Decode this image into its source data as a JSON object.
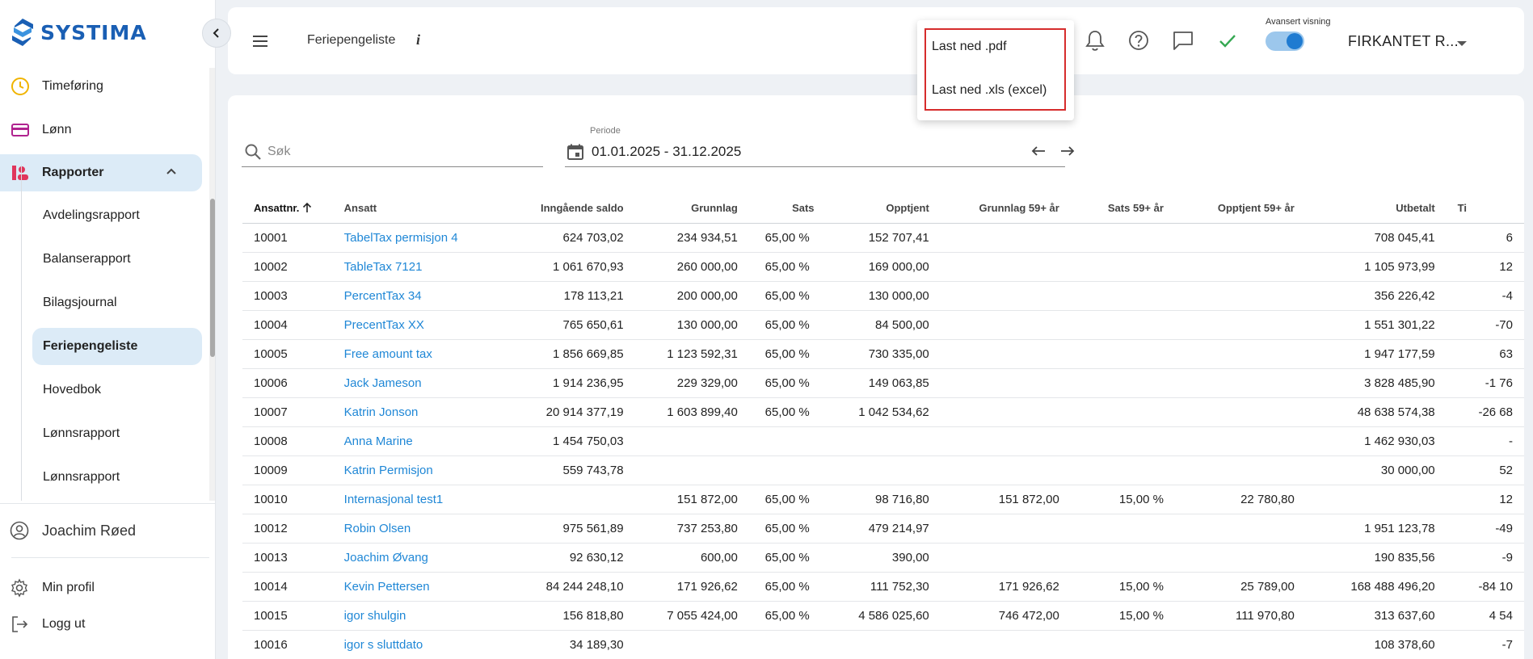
{
  "brand": {
    "name": "SYSTIMA",
    "color": "#1a5fb4"
  },
  "sidebar": {
    "items": [
      {
        "label": "Timeføring",
        "icon": "clock-icon"
      },
      {
        "label": "Lønn",
        "icon": "card-icon"
      },
      {
        "label": "Rapporter",
        "icon": "report-icon",
        "expanded": true
      }
    ],
    "sub_items": [
      "Avdelingsrapport",
      "Balanserapport",
      "Bilagsjournal",
      "Feriepengeliste",
      "Hovedbok",
      "Lønnsrapport",
      "Lønnsrapport"
    ],
    "active_sub": "Feriepengeliste",
    "user": "Joachim Røed",
    "footer": {
      "profile": "Min profil",
      "logout": "Logg ut"
    }
  },
  "header": {
    "title": "Feriepengeliste",
    "info": "i",
    "advanced_view_label": "Avansert visning",
    "advanced_view_on": true,
    "company": "FIRKANTET R..."
  },
  "export_menu": {
    "pdf": "Last ned .pdf",
    "xls": "Last ned .xls (excel)"
  },
  "filters": {
    "search_placeholder": "Søk",
    "period_label": "Periode",
    "period_value": "01.01.2025 - 31.12.2025"
  },
  "table": {
    "columns": [
      "Ansattnr.",
      "Ansatt",
      "Inngående saldo",
      "Grunnlag",
      "Sats",
      "Opptjent",
      "Grunnlag 59+ år",
      "Sats 59+ år",
      "Opptjent 59+ år",
      "Utbetalt",
      "Ti"
    ],
    "rows": [
      [
        "10001",
        "TabelTax permisjon 4",
        "624 703,02",
        "234 934,51",
        "65,00 %",
        "152 707,41",
        "",
        "",
        "",
        "708 045,41",
        "6"
      ],
      [
        "10002",
        "TableTax 7121",
        "1 061 670,93",
        "260 000,00",
        "65,00 %",
        "169 000,00",
        "",
        "",
        "",
        "1 105 973,99",
        "12"
      ],
      [
        "10003",
        "PercentTax 34",
        "178 113,21",
        "200 000,00",
        "65,00 %",
        "130 000,00",
        "",
        "",
        "",
        "356 226,42",
        "-4"
      ],
      [
        "10004",
        "PrecentTax XX",
        "765 650,61",
        "130 000,00",
        "65,00 %",
        "84 500,00",
        "",
        "",
        "",
        "1 551 301,22",
        "-70"
      ],
      [
        "10005",
        "Free amount tax",
        "1 856 669,85",
        "1 123 592,31",
        "65,00 %",
        "730 335,00",
        "",
        "",
        "",
        "1 947 177,59",
        "63"
      ],
      [
        "10006",
        "Jack Jameson",
        "1 914 236,95",
        "229 329,00",
        "65,00 %",
        "149 063,85",
        "",
        "",
        "",
        "3 828 485,90",
        "-1 76"
      ],
      [
        "10007",
        "Katrin Jonson",
        "20 914 377,19",
        "1 603 899,40",
        "65,00 %",
        "1 042 534,62",
        "",
        "",
        "",
        "48 638 574,38",
        "-26 68"
      ],
      [
        "10008",
        "Anna Marine",
        "1 454 750,03",
        "",
        "",
        "",
        "",
        "",
        "",
        "1 462 930,03",
        "-"
      ],
      [
        "10009",
        "Katrin Permisjon",
        "559 743,78",
        "",
        "",
        "",
        "",
        "",
        "",
        "30 000,00",
        "52"
      ],
      [
        "10010",
        "Internasjonal test1",
        "",
        "151 872,00",
        "65,00 %",
        "98 716,80",
        "151 872,00",
        "15,00 %",
        "22 780,80",
        "",
        "12"
      ],
      [
        "10012",
        "Robin Olsen",
        "975 561,89",
        "737 253,80",
        "65,00 %",
        "479 214,97",
        "",
        "",
        "",
        "1 951 123,78",
        "-49"
      ],
      [
        "10013",
        "Joachim Øvang",
        "92 630,12",
        "600,00",
        "65,00 %",
        "390,00",
        "",
        "",
        "",
        "190 835,56",
        "-9"
      ],
      [
        "10014",
        "Kevin Pettersen",
        "84 244 248,10",
        "171 926,62",
        "65,00 %",
        "111 752,30",
        "171 926,62",
        "15,00 %",
        "25 789,00",
        "168 488 496,20",
        "-84 10"
      ],
      [
        "10015",
        "igor shulgin",
        "156 818,80",
        "7 055 424,00",
        "65,00 %",
        "4 586 025,60",
        "746 472,00",
        "15,00 %",
        "111 970,80",
        "313 637,60",
        "4 54"
      ],
      [
        "10016",
        "igor s sluttdato",
        "34 189,30",
        "",
        "",
        "",
        "",
        "",
        "",
        "108 378,60",
        "-7"
      ]
    ]
  }
}
